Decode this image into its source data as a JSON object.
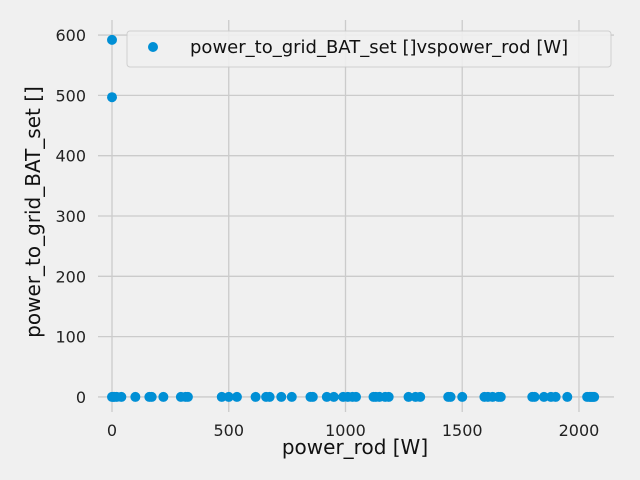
{
  "chart_data": {
    "type": "scatter",
    "xlabel": "power_rod [W]",
    "ylabel": "power_to_grid_BAT_set []",
    "xlim": [
      -60,
      2150
    ],
    "ylim": [
      -25,
      625
    ],
    "x_ticks": [
      0,
      500,
      1000,
      1500,
      2000
    ],
    "y_ticks": [
      0,
      100,
      200,
      300,
      400,
      500,
      600
    ],
    "grid": true,
    "legend_position": "top-right",
    "colors": {
      "background": "#f0f0f0",
      "point": "#008fd5"
    },
    "series": [
      {
        "name": "power_to_grid_BAT_set []vspower_rod [W]",
        "points": [
          [
            0,
            592
          ],
          [
            0,
            497
          ],
          [
            0,
            0
          ],
          [
            5,
            0
          ],
          [
            10,
            0
          ],
          [
            20,
            0
          ],
          [
            40,
            0
          ],
          [
            100,
            0
          ],
          [
            160,
            0
          ],
          [
            170,
            0
          ],
          [
            220,
            0
          ],
          [
            295,
            0
          ],
          [
            315,
            0
          ],
          [
            325,
            0
          ],
          [
            470,
            0
          ],
          [
            500,
            0
          ],
          [
            535,
            0
          ],
          [
            615,
            0
          ],
          [
            660,
            0
          ],
          [
            675,
            0
          ],
          [
            725,
            0
          ],
          [
            770,
            0
          ],
          [
            850,
            0
          ],
          [
            860,
            0
          ],
          [
            920,
            0
          ],
          [
            950,
            0
          ],
          [
            990,
            0
          ],
          [
            1010,
            0
          ],
          [
            1030,
            0
          ],
          [
            1045,
            0
          ],
          [
            1120,
            0
          ],
          [
            1130,
            0
          ],
          [
            1145,
            0
          ],
          [
            1170,
            0
          ],
          [
            1185,
            0
          ],
          [
            1270,
            0
          ],
          [
            1300,
            0
          ],
          [
            1320,
            0
          ],
          [
            1440,
            0
          ],
          [
            1450,
            0
          ],
          [
            1500,
            0
          ],
          [
            1595,
            0
          ],
          [
            1610,
            0
          ],
          [
            1630,
            0
          ],
          [
            1655,
            0
          ],
          [
            1665,
            0
          ],
          [
            1800,
            0
          ],
          [
            1810,
            0
          ],
          [
            1850,
            0
          ],
          [
            1880,
            0
          ],
          [
            1900,
            0
          ],
          [
            1950,
            0
          ],
          [
            2035,
            0
          ],
          [
            2045,
            0
          ],
          [
            2050,
            0
          ],
          [
            2055,
            0
          ],
          [
            2060,
            0
          ],
          [
            2065,
            0
          ]
        ]
      }
    ]
  }
}
